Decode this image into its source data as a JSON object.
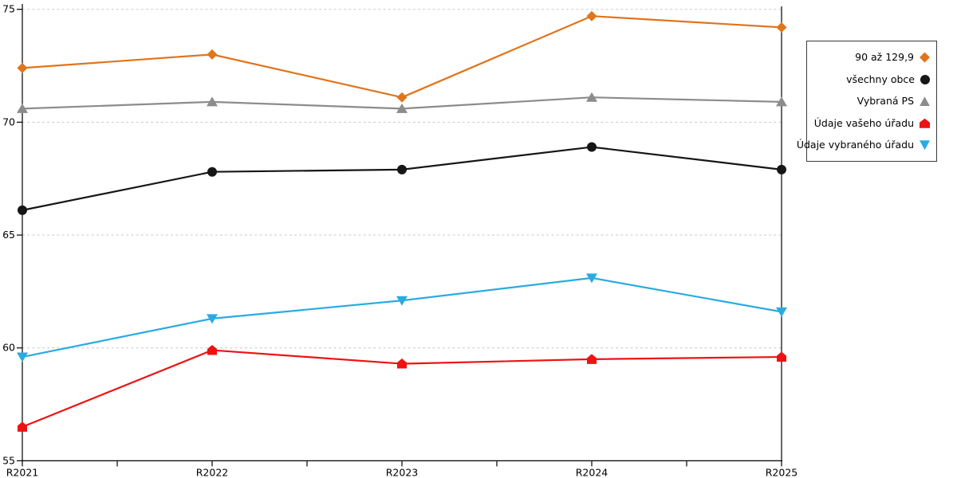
{
  "chart_data": {
    "type": "line",
    "title": "",
    "xlabel": "",
    "ylabel": "",
    "categories": [
      "R2021",
      "R2022",
      "R2023",
      "R2024",
      "R2025"
    ],
    "series": [
      {
        "name": "90 až 129,9",
        "marker": "diamond",
        "color": "#E0751C",
        "values": [
          72.4,
          73.0,
          71.1,
          74.7,
          74.2
        ]
      },
      {
        "name": "všechny obce",
        "marker": "circle",
        "color": "#161616",
        "values": [
          66.1,
          67.8,
          67.9,
          68.9,
          67.9
        ]
      },
      {
        "name": "Vybraná PS",
        "marker": "triangle-up",
        "color": "#8C8C8C",
        "values": [
          70.6,
          70.9,
          70.6,
          71.1,
          70.9
        ]
      },
      {
        "name": "Údaje vašeho úřadu",
        "marker": "pentagon",
        "color": "#EE1212",
        "values": [
          56.5,
          59.9,
          59.3,
          59.5,
          59.6
        ]
      },
      {
        "name": "Údaje vybraného úřadu",
        "marker": "triangle-down",
        "color": "#29ABE2",
        "values": [
          59.6,
          61.3,
          62.1,
          63.1,
          61.6
        ]
      }
    ],
    "ylim": [
      55,
      75
    ],
    "yticks": [
      55,
      60,
      65,
      70,
      75
    ],
    "ytick_labels": [
      "55",
      "60",
      "65",
      "70",
      "75"
    ],
    "grid": "horizontal-dashed",
    "legend_position": "right"
  },
  "colors": {
    "background": "#ffffff",
    "gridline": "#C9C9C9",
    "axis": "#000000",
    "tick_label": "#000000",
    "legend_border": "#3c3c3c"
  }
}
